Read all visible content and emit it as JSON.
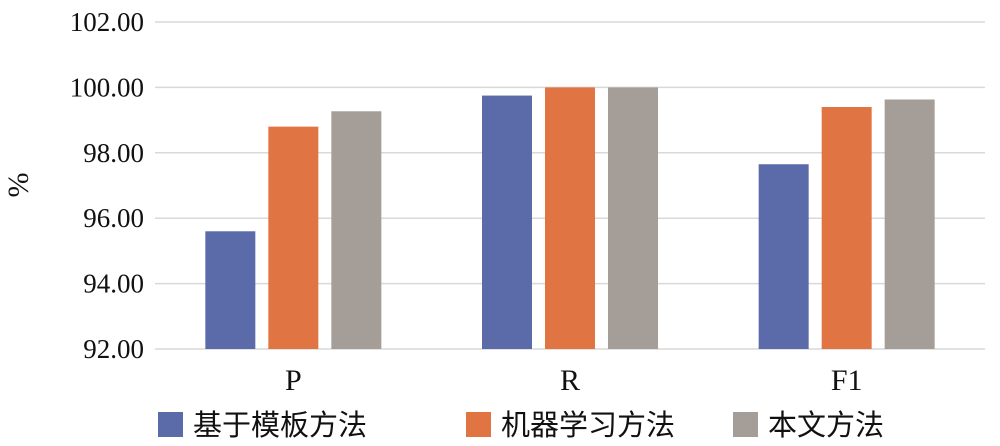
{
  "chart_data": {
    "type": "bar",
    "categories": [
      "P",
      "R",
      "F1"
    ],
    "series": [
      {
        "name": "基于模板方法",
        "color": "#5b6aa8",
        "values": [
          95.6,
          99.75,
          97.65
        ]
      },
      {
        "name": "机器学习方法",
        "color": "#e07443",
        "values": [
          98.8,
          100.0,
          99.4
        ]
      },
      {
        "name": "本文方法",
        "color": "#a59e98",
        "values": [
          99.27,
          100.0,
          99.63
        ]
      }
    ],
    "ylabel": "%",
    "ylim": [
      92,
      102
    ],
    "yticks": [
      "92.00",
      "94.00",
      "96.00",
      "98.00",
      "100.00",
      "102.00"
    ],
    "grid": true,
    "legend": "bottom"
  }
}
